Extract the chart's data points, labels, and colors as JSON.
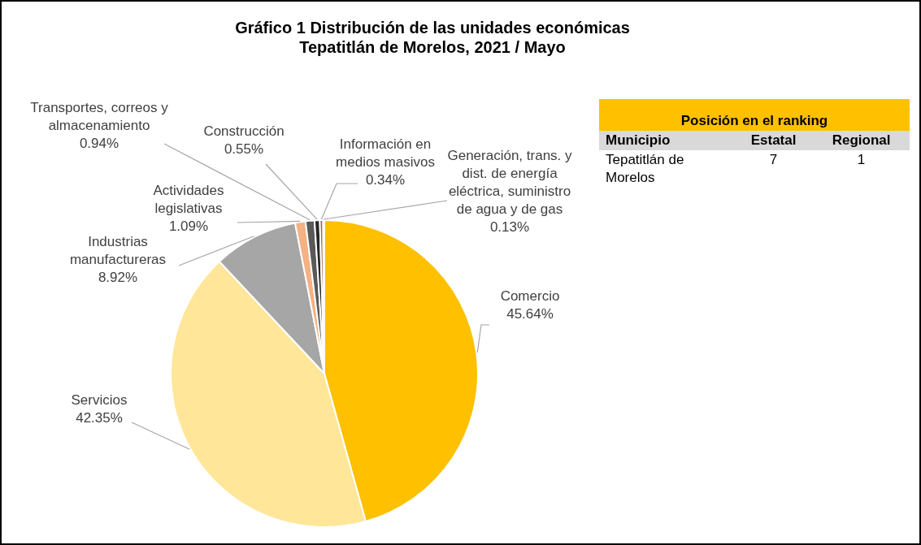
{
  "chart_data": [
    {
      "type": "pie",
      "title": "Gráfico 1 Distribución de las unidades económicas\nTepatitlán de Morelos, 2021 / Mayo",
      "categories": [
        "Comercio",
        "Servicios",
        "Industrias manufactureras",
        "Actividades legislativas",
        "Transportes, correos y almacenamiento",
        "Construcción",
        "Información en medios masivos",
        "Generación, trans. y dist. de energía eléctrica, suministro de agua y de gas"
      ],
      "values": [
        45.64,
        42.35,
        8.92,
        1.09,
        0.94,
        0.55,
        0.34,
        0.13
      ],
      "colors": [
        "#ffc000",
        "#ffe699",
        "#a6a6a6",
        "#f4b183",
        "#595959",
        "#262626",
        "#9e6a3a",
        "#ffd966"
      ],
      "value_labels": [
        "45.64%",
        "42.35%",
        "8.92%",
        "1.09%",
        "0.94%",
        "0.55%",
        "0.34%",
        "0.13%"
      ],
      "legend": false
    },
    {
      "type": "other",
      "title": "Posición en el ranking",
      "annotations": [
        "Municipio",
        "Estatal",
        "Regional",
        "Tepatitlán de Morelos",
        "7",
        "1"
      ]
    }
  ]
}
